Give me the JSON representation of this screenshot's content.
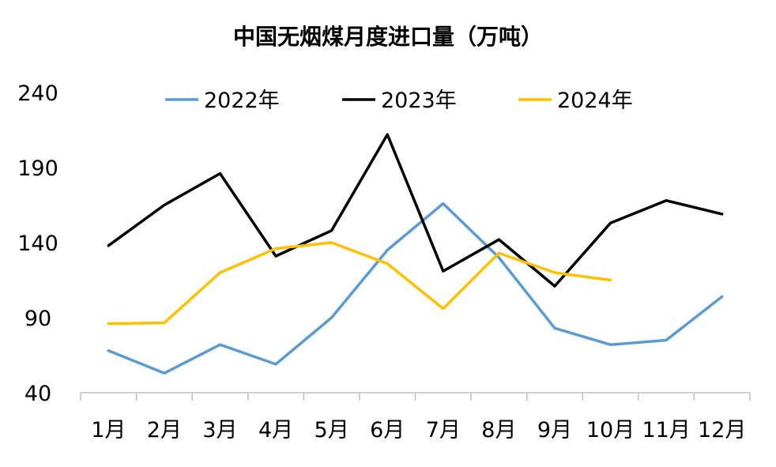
{
  "chart_data": {
    "type": "line",
    "title": "中国无烟煤月度进口量（万吨）",
    "xlabel": "",
    "ylabel": "",
    "categories": [
      "1月",
      "2月",
      "3月",
      "4月",
      "5月",
      "6月",
      "7月",
      "8月",
      "9月",
      "10月",
      "11月",
      "12月"
    ],
    "ylim": [
      40,
      240
    ],
    "yticks": [
      40,
      90,
      140,
      190,
      240
    ],
    "grid": false,
    "legend": "top",
    "series": [
      {
        "name": "2022年",
        "color": "#5B9BD5",
        "values": [
          68,
          53,
          72,
          59,
          90,
          135,
          166,
          130,
          83,
          72,
          75,
          104
        ]
      },
      {
        "name": "2023年",
        "color": "#000000",
        "values": [
          138,
          165,
          186,
          131,
          148,
          212,
          121,
          142,
          111,
          153,
          168,
          159
        ]
      },
      {
        "name": "2024年",
        "color": "#FFC000",
        "values": [
          86,
          86.5,
          120,
          136,
          140,
          126,
          96,
          133,
          120,
          115,
          null,
          null
        ]
      }
    ]
  }
}
